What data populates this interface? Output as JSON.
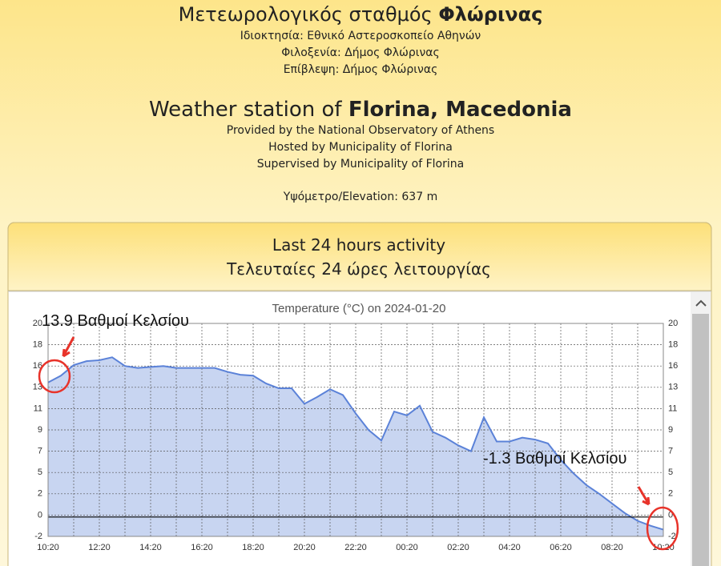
{
  "header": {
    "greek_title": "Μετεωρολογικός σταθμός",
    "greek_title_bold": "Φλώρινας",
    "greek_lines": [
      "Ιδιοκτησία: Εθνικό Αστεροσκοπείο Αθηνών",
      "Φιλοξενία: Δήμος Φλώρινας",
      "Επίβλεψη: Δήμος Φλώρινας"
    ],
    "english_title": "Weather station of",
    "english_title_bold": "Florina, Macedonia",
    "english_lines": [
      "Provided by the National Observatory of Athens",
      "Hosted by Municipality of Florina",
      "Supervised by Municipality of Florina"
    ],
    "elevation": "Υψόμετρο/Elevation: 637 m"
  },
  "panel": {
    "title": "Last 24 hours activity",
    "subtitle": "Τελευταίες 24 ώρες λειτουργίας"
  },
  "chart_data": {
    "type": "area",
    "title": "Temperature (°C) on 2024-01-20",
    "categories": [
      "10:20",
      null,
      null,
      null,
      "12:20",
      null,
      null,
      null,
      "14:20",
      null,
      null,
      null,
      "16:20",
      null,
      null,
      null,
      "18:20",
      null,
      null,
      null,
      "20:20",
      null,
      null,
      null,
      "22:20",
      null,
      null,
      null,
      "00:20",
      null,
      null,
      null,
      "02:20",
      null,
      null,
      null,
      "04:20",
      null,
      null,
      null,
      "06:20",
      null,
      null,
      null,
      "08:20",
      null,
      null,
      null,
      "10:20"
    ],
    "values": [
      13.9,
      14.6,
      15.7,
      16.1,
      16.2,
      16.5,
      15.6,
      15.4,
      15.5,
      15.6,
      15.4,
      15.4,
      15.4,
      15.4,
      15.0,
      14.7,
      14.6,
      13.8,
      13.3,
      13.3,
      11.7,
      12.4,
      13.2,
      12.6,
      10.7,
      9.0,
      7.9,
      10.9,
      10.5,
      11.5,
      8.8,
      8.2,
      7.4,
      6.8,
      10.3,
      7.8,
      7.8,
      8.2,
      8.0,
      7.6,
      5.9,
      4.5,
      3.3,
      2.4,
      1.4,
      0.4,
      -0.4,
      -0.9,
      -1.3
    ],
    "color": "#5b82d8",
    "fill_color": "#c8d5f1",
    "ylim": [
      -2,
      20
    ],
    "yticks": [
      20,
      {
        "value": 17.8,
        "label": "18"
      },
      {
        "value": 15.6,
        "label": "16"
      },
      {
        "value": 13.4,
        "label": "13"
      },
      {
        "value": 11.2,
        "label": "11"
      },
      9,
      {
        "value": 6.8,
        "label": "7"
      },
      {
        "value": 4.6,
        "label": "5"
      },
      {
        "value": 2.4,
        "label": "2"
      },
      {
        "value": 0.2,
        "label": "0"
      },
      -2
    ],
    "grid": true,
    "annotations": [
      "13.9 Βαθμοί Κελσίου",
      "-1.3 Βαθμοί Κελσίου"
    ]
  }
}
